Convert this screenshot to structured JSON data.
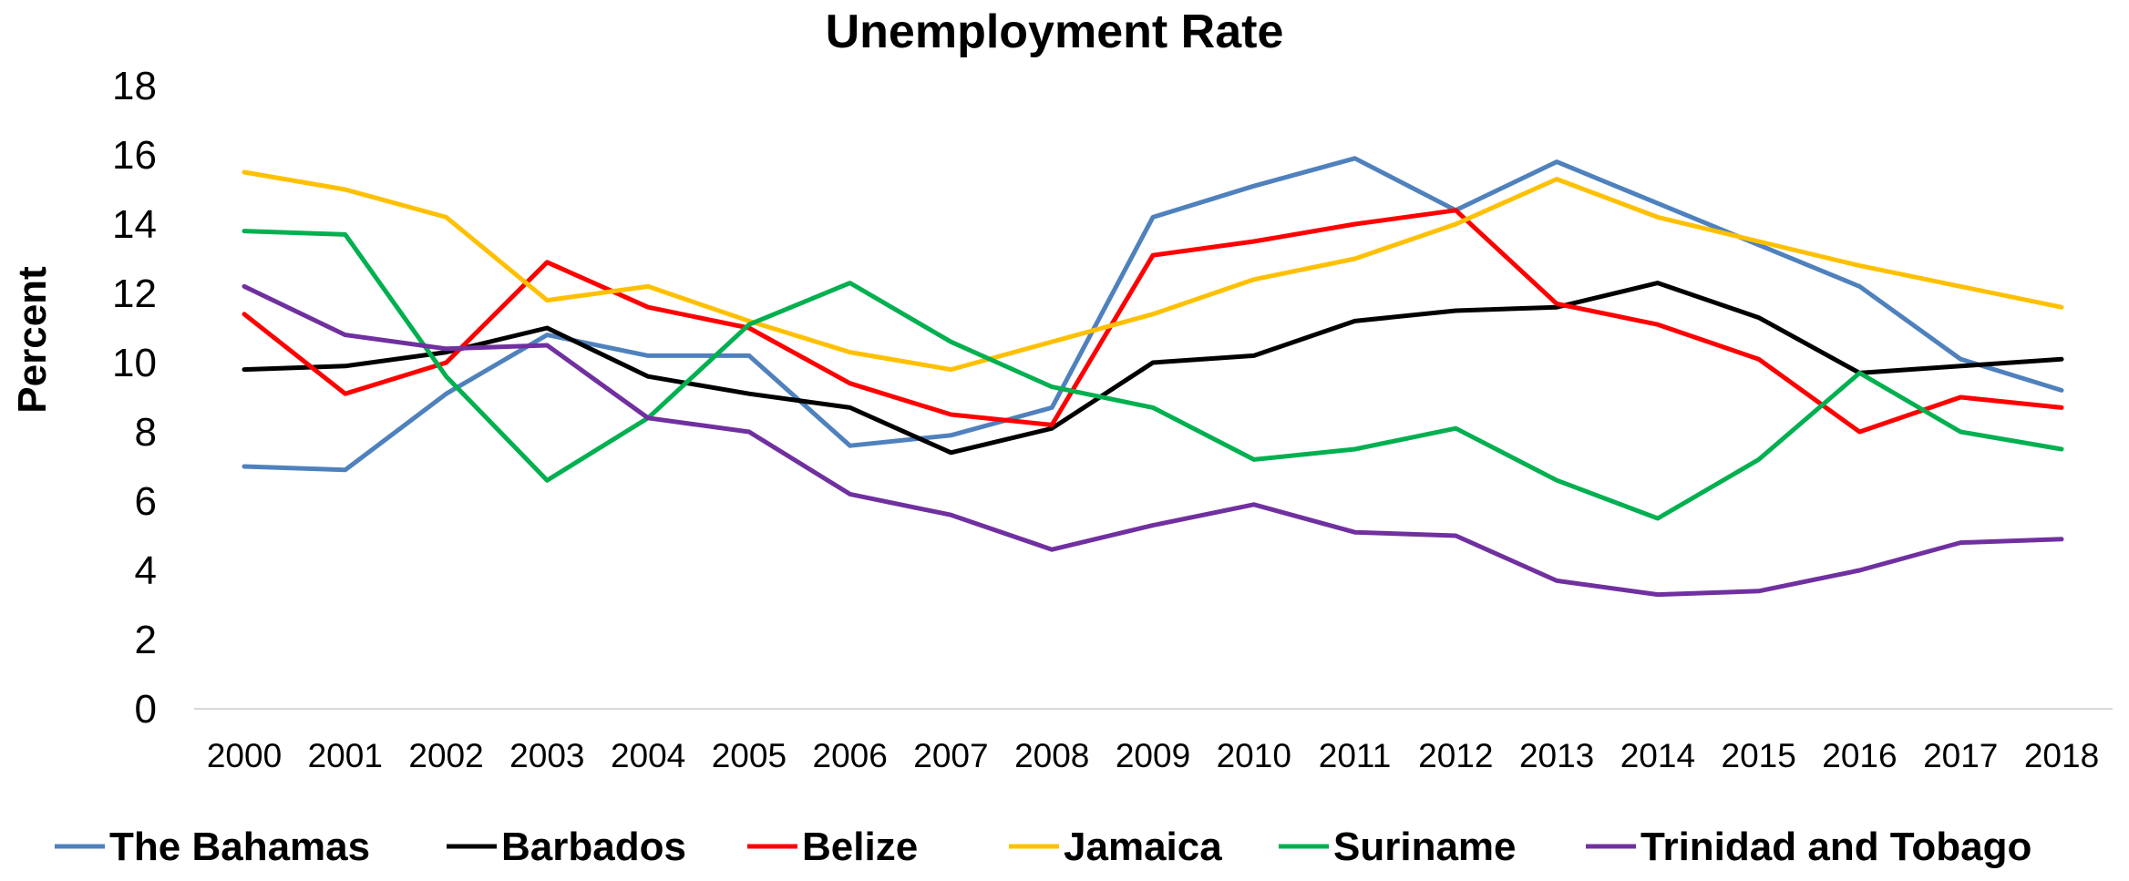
{
  "chart_data": {
    "type": "line",
    "title": "Unemployment Rate",
    "xlabel": "",
    "ylabel": "Percent",
    "ylim": [
      0,
      18
    ],
    "yticks": [
      0,
      2,
      4,
      6,
      8,
      10,
      12,
      14,
      16,
      18
    ],
    "categories": [
      "2000",
      "2001",
      "2002",
      "2003",
      "2004",
      "2005",
      "2006",
      "2007",
      "2008",
      "2009",
      "2010",
      "2011",
      "2012",
      "2013",
      "2014",
      "2015",
      "2016",
      "2017",
      "2018"
    ],
    "grid": false,
    "legend_position": "bottom",
    "series": [
      {
        "name": "The Bahamas",
        "color": "#4F81BD",
        "values": [
          7.0,
          6.9,
          9.1,
          10.8,
          10.2,
          10.2,
          7.6,
          7.9,
          8.7,
          14.2,
          15.1,
          15.9,
          14.4,
          15.8,
          14.6,
          13.4,
          12.2,
          10.1,
          9.2
        ]
      },
      {
        "name": "Barbados",
        "color": "#000000",
        "values": [
          9.8,
          9.9,
          10.3,
          11.0,
          9.6,
          9.1,
          8.7,
          7.4,
          8.1,
          10.0,
          10.2,
          11.2,
          11.5,
          11.6,
          12.3,
          11.3,
          9.7,
          9.9,
          10.1
        ]
      },
      {
        "name": "Belize",
        "color": "#FF0000",
        "values": [
          11.4,
          9.1,
          10.0,
          12.9,
          11.6,
          11.0,
          9.4,
          8.5,
          8.2,
          13.1,
          13.5,
          14.0,
          14.4,
          11.7,
          11.1,
          10.1,
          8.0,
          9.0,
          8.7
        ]
      },
      {
        "name": "Jamaica",
        "color": "#FFC000",
        "values": [
          15.5,
          15.0,
          14.2,
          11.8,
          12.2,
          11.2,
          10.3,
          9.8,
          10.6,
          11.4,
          12.4,
          13.0,
          14.0,
          15.3,
          14.2,
          13.5,
          12.8,
          12.2,
          11.6
        ]
      },
      {
        "name": "Suriname",
        "color": "#00B050",
        "values": [
          13.8,
          13.7,
          9.6,
          6.6,
          8.4,
          11.1,
          12.3,
          10.6,
          9.3,
          8.7,
          7.2,
          7.5,
          8.1,
          6.6,
          5.5,
          7.2,
          9.7,
          8.0,
          7.5
        ]
      },
      {
        "name": "Trinidad and Tobago",
        "color": "#7030A0",
        "values": [
          12.2,
          10.8,
          10.4,
          10.5,
          8.4,
          8.0,
          6.2,
          5.6,
          4.6,
          5.3,
          5.9,
          5.1,
          5.0,
          3.7,
          3.3,
          3.4,
          4.0,
          4.8,
          4.9
        ]
      }
    ]
  }
}
